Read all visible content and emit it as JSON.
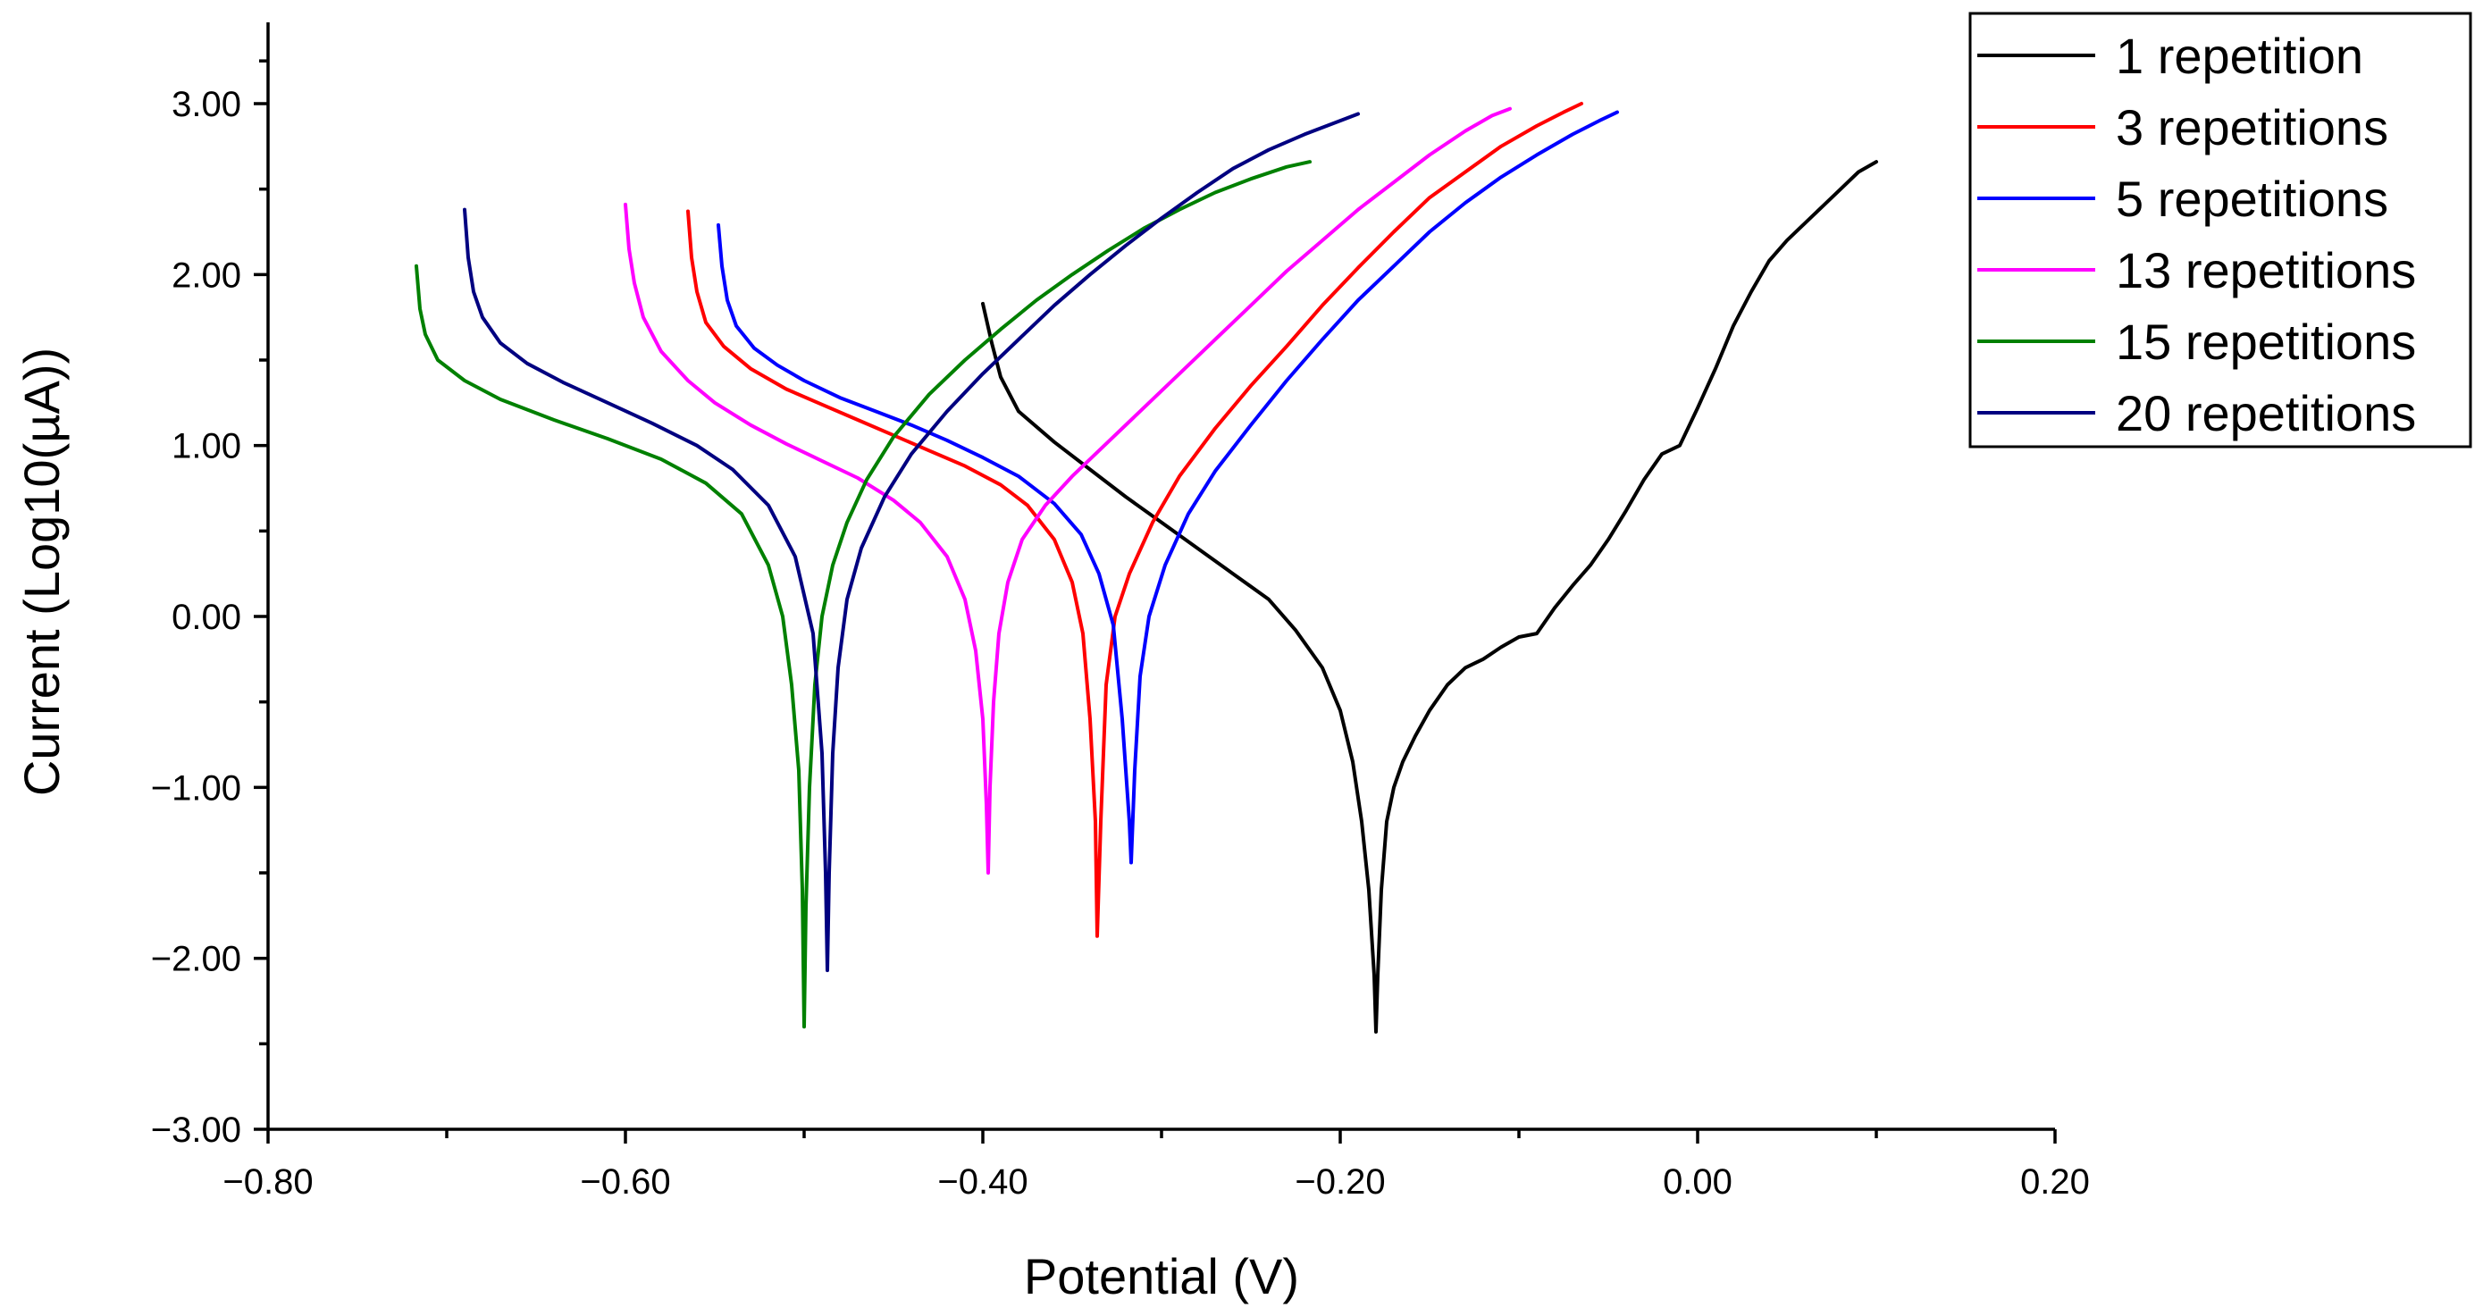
{
  "chart_data": {
    "type": "line",
    "title": "",
    "xlabel": "Potential (V)",
    "ylabel": "Current (Log10(µA))",
    "xlim": [
      -0.8,
      0.2
    ],
    "ylim": [
      -3.0,
      3.5
    ],
    "x_ticks": [
      -0.8,
      -0.6,
      -0.4,
      -0.2,
      0.0,
      0.2
    ],
    "x_tick_labels": [
      "−0.80",
      "−0.60",
      "−0.40",
      "−0.20",
      "0.00",
      "0.20"
    ],
    "y_ticks": [
      -3.0,
      -2.0,
      -1.0,
      0.0,
      1.0,
      2.0,
      3.0
    ],
    "y_tick_labels": [
      "−3.00",
      "−2.00",
      "−1.00",
      "0.00",
      "1.00",
      "2.00",
      "3.00"
    ],
    "grid": false,
    "legend_position": "top-right",
    "series": [
      {
        "name": "1 repetition",
        "color": "#000000",
        "x": [
          -0.4,
          -0.395,
          -0.39,
          -0.38,
          -0.36,
          -0.34,
          -0.32,
          -0.3,
          -0.28,
          -0.26,
          -0.24,
          -0.225,
          -0.21,
          -0.2,
          -0.193,
          -0.188,
          -0.184,
          -0.181,
          -0.18,
          -0.179,
          -0.177,
          -0.174,
          -0.17,
          -0.165,
          -0.158,
          -0.15,
          -0.14,
          -0.13,
          -0.12,
          -0.11,
          -0.1,
          -0.09,
          -0.08,
          -0.07,
          -0.06,
          -0.05,
          -0.04,
          -0.03,
          -0.02,
          -0.01,
          0.0,
          0.01,
          0.02,
          0.03,
          0.04,
          0.05,
          0.06,
          0.07,
          0.08,
          0.09,
          0.1
        ],
        "values": [
          1.83,
          1.6,
          1.4,
          1.2,
          1.02,
          0.86,
          0.7,
          0.55,
          0.4,
          0.25,
          0.1,
          -0.08,
          -0.3,
          -0.55,
          -0.85,
          -1.2,
          -1.6,
          -2.1,
          -2.43,
          -2.1,
          -1.6,
          -1.2,
          -1.0,
          -0.85,
          -0.7,
          -0.55,
          -0.4,
          -0.3,
          -0.25,
          -0.18,
          -0.12,
          -0.1,
          0.05,
          0.18,
          0.3,
          0.45,
          0.62,
          0.8,
          0.95,
          1.0,
          1.22,
          1.45,
          1.7,
          1.9,
          2.08,
          2.2,
          2.3,
          2.4,
          2.5,
          2.6,
          2.66
        ]
      },
      {
        "name": "3 repetitions",
        "color": "#ff0000",
        "x": [
          -0.565,
          -0.563,
          -0.56,
          -0.555,
          -0.545,
          -0.53,
          -0.51,
          -0.49,
          -0.47,
          -0.45,
          -0.43,
          -0.41,
          -0.39,
          -0.375,
          -0.36,
          -0.35,
          -0.344,
          -0.34,
          -0.337,
          -0.336,
          -0.334,
          -0.331,
          -0.326,
          -0.318,
          -0.305,
          -0.29,
          -0.27,
          -0.25,
          -0.23,
          -0.21,
          -0.19,
          -0.17,
          -0.15,
          -0.13,
          -0.11,
          -0.09,
          -0.075,
          -0.065
        ],
        "values": [
          2.37,
          2.1,
          1.9,
          1.72,
          1.58,
          1.45,
          1.33,
          1.24,
          1.15,
          1.06,
          0.97,
          0.88,
          0.77,
          0.65,
          0.45,
          0.2,
          -0.1,
          -0.6,
          -1.2,
          -1.87,
          -1.2,
          -0.4,
          0.0,
          0.25,
          0.55,
          0.82,
          1.1,
          1.35,
          1.58,
          1.82,
          2.04,
          2.25,
          2.45,
          2.6,
          2.75,
          2.87,
          2.95,
          3.0
        ]
      },
      {
        "name": "5 repetitions",
        "color": "#0000ff",
        "x": [
          -0.548,
          -0.546,
          -0.543,
          -0.538,
          -0.528,
          -0.515,
          -0.5,
          -0.48,
          -0.46,
          -0.44,
          -0.42,
          -0.4,
          -0.38,
          -0.36,
          -0.345,
          -0.335,
          -0.327,
          -0.322,
          -0.318,
          -0.317,
          -0.315,
          -0.312,
          -0.307,
          -0.298,
          -0.285,
          -0.27,
          -0.25,
          -0.23,
          -0.21,
          -0.19,
          -0.17,
          -0.15,
          -0.13,
          -0.11,
          -0.09,
          -0.07,
          -0.055,
          -0.045
        ],
        "values": [
          2.29,
          2.05,
          1.85,
          1.7,
          1.57,
          1.47,
          1.38,
          1.28,
          1.2,
          1.12,
          1.03,
          0.93,
          0.82,
          0.66,
          0.48,
          0.25,
          -0.05,
          -0.6,
          -1.2,
          -1.44,
          -0.9,
          -0.35,
          0.0,
          0.3,
          0.6,
          0.85,
          1.12,
          1.38,
          1.62,
          1.85,
          2.05,
          2.25,
          2.42,
          2.57,
          2.7,
          2.82,
          2.9,
          2.95
        ]
      },
      {
        "name": "13 repetitions",
        "color": "#ff00ff",
        "x": [
          -0.6,
          -0.598,
          -0.595,
          -0.59,
          -0.58,
          -0.565,
          -0.55,
          -0.53,
          -0.51,
          -0.49,
          -0.47,
          -0.45,
          -0.435,
          -0.42,
          -0.41,
          -0.404,
          -0.4,
          -0.398,
          -0.397,
          -0.396,
          -0.394,
          -0.391,
          -0.386,
          -0.378,
          -0.365,
          -0.35,
          -0.33,
          -0.31,
          -0.29,
          -0.27,
          -0.25,
          -0.23,
          -0.21,
          -0.19,
          -0.17,
          -0.15,
          -0.13,
          -0.115,
          -0.105
        ],
        "values": [
          2.41,
          2.15,
          1.95,
          1.75,
          1.55,
          1.38,
          1.25,
          1.12,
          1.01,
          0.91,
          0.81,
          0.68,
          0.55,
          0.35,
          0.1,
          -0.2,
          -0.6,
          -1.1,
          -1.5,
          -1.0,
          -0.5,
          -0.1,
          0.2,
          0.45,
          0.65,
          0.82,
          1.02,
          1.22,
          1.42,
          1.62,
          1.82,
          2.02,
          2.2,
          2.38,
          2.54,
          2.7,
          2.84,
          2.93,
          2.97
        ]
      },
      {
        "name": "15 repetitions",
        "color": "#008000",
        "x": [
          -0.717,
          -0.715,
          -0.712,
          -0.705,
          -0.69,
          -0.67,
          -0.64,
          -0.61,
          -0.58,
          -0.555,
          -0.535,
          -0.52,
          -0.512,
          -0.507,
          -0.503,
          -0.501,
          -0.5,
          -0.499,
          -0.497,
          -0.494,
          -0.49,
          -0.484,
          -0.476,
          -0.465,
          -0.45,
          -0.43,
          -0.41,
          -0.39,
          -0.37,
          -0.35,
          -0.33,
          -0.31,
          -0.29,
          -0.27,
          -0.25,
          -0.23,
          -0.217
        ],
        "values": [
          2.05,
          1.8,
          1.65,
          1.5,
          1.38,
          1.27,
          1.15,
          1.04,
          0.92,
          0.78,
          0.6,
          0.3,
          0.0,
          -0.4,
          -0.9,
          -1.6,
          -2.4,
          -1.7,
          -1.0,
          -0.4,
          0.0,
          0.3,
          0.55,
          0.8,
          1.05,
          1.3,
          1.5,
          1.68,
          1.85,
          2.0,
          2.14,
          2.27,
          2.38,
          2.48,
          2.56,
          2.63,
          2.66
        ]
      },
      {
        "name": "20 repetitions",
        "color": "#000080",
        "x": [
          -0.69,
          -0.688,
          -0.685,
          -0.68,
          -0.67,
          -0.655,
          -0.635,
          -0.61,
          -0.585,
          -0.56,
          -0.54,
          -0.52,
          -0.505,
          -0.495,
          -0.49,
          -0.488,
          -0.487,
          -0.486,
          -0.484,
          -0.481,
          -0.476,
          -0.468,
          -0.455,
          -0.44,
          -0.42,
          -0.4,
          -0.38,
          -0.36,
          -0.34,
          -0.32,
          -0.3,
          -0.28,
          -0.26,
          -0.24,
          -0.22,
          -0.2,
          -0.19
        ],
        "values": [
          2.38,
          2.1,
          1.9,
          1.75,
          1.6,
          1.48,
          1.37,
          1.25,
          1.13,
          1.0,
          0.86,
          0.65,
          0.35,
          -0.1,
          -0.8,
          -1.5,
          -2.07,
          -1.5,
          -0.8,
          -0.3,
          0.1,
          0.4,
          0.7,
          0.95,
          1.2,
          1.42,
          1.62,
          1.82,
          2.0,
          2.17,
          2.33,
          2.48,
          2.62,
          2.73,
          2.82,
          2.9,
          2.94
        ]
      }
    ]
  }
}
